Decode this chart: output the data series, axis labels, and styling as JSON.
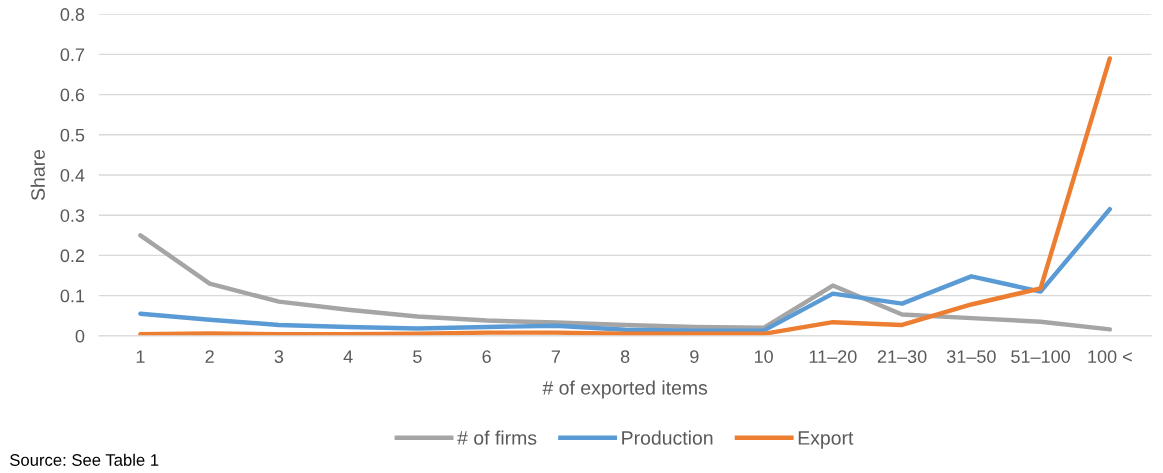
{
  "chart_data": {
    "type": "line",
    "xlabel": "# of exported items",
    "ylabel": "Share",
    "categories": [
      "1",
      "2",
      "3",
      "4",
      "5",
      "6",
      "7",
      "8",
      "9",
      "10",
      "11–20",
      "21–30",
      "31–50",
      "51–100",
      "100 <"
    ],
    "series": [
      {
        "name": "# of firms",
        "color": "#a5a5a5",
        "values": [
          0.25,
          0.13,
          0.085,
          0.065,
          0.048,
          0.038,
          0.033,
          0.027,
          0.022,
          0.02,
          0.125,
          0.053,
          0.044,
          0.035,
          0.016
        ]
      },
      {
        "name": "Production",
        "color": "#5b9bd5",
        "values": [
          0.055,
          0.04,
          0.027,
          0.022,
          0.018,
          0.022,
          0.025,
          0.015,
          0.013,
          0.013,
          0.105,
          0.08,
          0.148,
          0.11,
          0.315
        ]
      },
      {
        "name": "Export",
        "color": "#ed7d31",
        "values": [
          0.004,
          0.006,
          0.004,
          0.004,
          0.005,
          0.008,
          0.008,
          0.005,
          0.005,
          0.005,
          0.034,
          0.027,
          0.078,
          0.118,
          0.69
        ]
      }
    ],
    "ylim": [
      0,
      0.8
    ],
    "yticks": [
      {
        "value": 0,
        "label": "0"
      },
      0.1,
      0.2,
      0.3,
      0.4,
      0.5,
      0.6,
      0.7,
      0.8
    ],
    "grid": "y",
    "legend": "bottom",
    "marker": "none",
    "line_style": "solid",
    "annotations": [
      "Source: See Table 1"
    ]
  }
}
